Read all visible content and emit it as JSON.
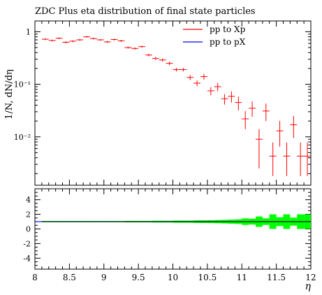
{
  "chart_data": {
    "type": "scatter",
    "title": "ZDC Plus eta distribution of final state particles",
    "ylabel": "1/N, dN/dη",
    "xlabel": "η",
    "xlim": [
      8,
      12
    ],
    "ylim": [
      0.0012,
      1.6
    ],
    "yscale": "log",
    "x_ticks": [
      "8",
      "8.5",
      "9",
      "9.5",
      "10",
      "10.5",
      "11",
      "11.5",
      "12"
    ],
    "y_ticks_main": [
      {
        "value": 1,
        "label": "1"
      },
      {
        "value": 0.1,
        "label": "10⁻¹"
      },
      {
        "value": 0.01,
        "label": "10⁻²"
      }
    ],
    "legend_position": "top-right",
    "legend": [
      {
        "label": "pp to Xp",
        "color": "#ff0000"
      },
      {
        "label": "pp to pX",
        "color": "#0000ff"
      }
    ],
    "series": [
      {
        "name": "pp to Xp",
        "color": "#ff0000",
        "x": [
          8.15,
          8.25,
          8.35,
          8.45,
          8.55,
          8.65,
          8.75,
          8.85,
          8.95,
          9.05,
          9.15,
          9.25,
          9.35,
          9.45,
          9.55,
          9.65,
          9.75,
          9.85,
          9.95,
          10.05,
          10.15,
          10.25,
          10.35,
          10.45,
          10.55,
          10.65,
          10.75,
          10.85,
          10.95,
          11.05,
          11.15,
          11.25,
          11.35,
          11.45,
          11.55,
          11.65,
          11.75,
          11.85,
          11.95
        ],
        "y": [
          0.72,
          0.68,
          0.75,
          0.63,
          0.66,
          0.7,
          0.8,
          0.74,
          0.7,
          0.64,
          0.71,
          0.67,
          0.5,
          0.48,
          0.52,
          0.36,
          0.31,
          0.29,
          0.25,
          0.19,
          0.19,
          0.135,
          0.105,
          0.14,
          0.075,
          0.09,
          0.053,
          0.059,
          0.045,
          0.022,
          0.035,
          0.009,
          0.031,
          0.0043,
          0.013,
          0.0043,
          0.017,
          0.0043,
          0.0043
        ],
        "y_err_up": [
          0.03,
          0.03,
          0.03,
          0.03,
          0.03,
          0.03,
          0.03,
          0.03,
          0.03,
          0.03,
          0.03,
          0.03,
          0.025,
          0.025,
          0.025,
          0.02,
          0.02,
          0.02,
          0.02,
          0.015,
          0.015,
          0.015,
          0.013,
          0.017,
          0.013,
          0.016,
          0.012,
          0.014,
          0.013,
          0.009,
          0.012,
          0.005,
          0.012,
          0.0035,
          0.007,
          0.0035,
          0.008,
          0.0035,
          0.0035
        ],
        "y_err_down": [
          0.03,
          0.03,
          0.03,
          0.03,
          0.03,
          0.03,
          0.03,
          0.03,
          0.03,
          0.03,
          0.03,
          0.03,
          0.025,
          0.025,
          0.025,
          0.02,
          0.02,
          0.02,
          0.02,
          0.015,
          0.015,
          0.015,
          0.013,
          0.017,
          0.013,
          0.016,
          0.012,
          0.014,
          0.013,
          0.008,
          0.011,
          0.0065,
          0.011,
          0.0025,
          0.0065,
          0.0025,
          0.0075,
          0.0025,
          0.0025
        ]
      },
      {
        "name": "pp to pX",
        "color": "#0000ff",
        "x": [],
        "y": []
      }
    ],
    "ratio_panel": {
      "ylim": [
        -5.5,
        5.5
      ],
      "y_ticks": [
        "4",
        "2",
        "0",
        "-2",
        "-4"
      ],
      "y_tick_values": [
        4,
        2,
        0,
        -2,
        -4
      ],
      "reference": 1,
      "band_color": "#00ff00",
      "band_halfwidth": [
        0.08,
        0.08,
        0.08,
        0.08,
        0.08,
        0.08,
        0.08,
        0.08,
        0.08,
        0.08,
        0.08,
        0.08,
        0.1,
        0.1,
        0.1,
        0.1,
        0.12,
        0.12,
        0.12,
        0.15,
        0.15,
        0.15,
        0.18,
        0.18,
        0.2,
        0.22,
        0.25,
        0.28,
        0.32,
        0.45,
        0.4,
        0.7,
        0.45,
        1.0,
        0.6,
        1.0,
        0.55,
        1.0,
        1.0
      ]
    }
  }
}
